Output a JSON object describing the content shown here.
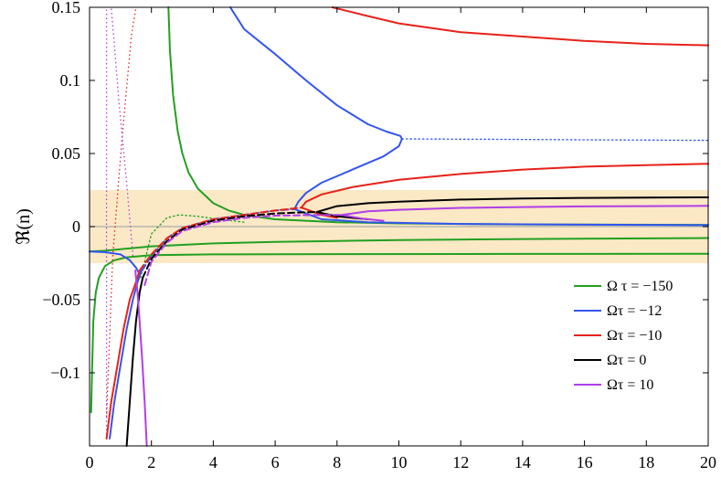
{
  "chart_data": {
    "type": "line",
    "title": "",
    "xlabel": "",
    "ylabel": "ℜ(n)",
    "xlim": [
      0,
      20
    ],
    "ylim": [
      -0.15,
      0.15
    ],
    "xticks": [
      0,
      2,
      4,
      6,
      8,
      10,
      12,
      14,
      16,
      18,
      20
    ],
    "yticks": [
      -0.1,
      -0.05,
      0,
      0.05,
      0.1,
      0.15
    ],
    "xtick_labels": [
      "0",
      "2",
      "4",
      "6",
      "8",
      "10",
      "12",
      "14",
      "16",
      "18",
      "20"
    ],
    "ytick_labels": [
      "−0.1",
      "−0.05",
      "0",
      "0.05",
      "0.1",
      "0.15"
    ],
    "grid": false,
    "legend_position": "lower-right",
    "shaded_band": {
      "y": [
        -0.025,
        0.025
      ],
      "color": "#fbe8c5"
    },
    "zero_line_color": "#aaaaaa",
    "series": [
      {
        "name": "Ω τ = −150",
        "color": "#22a022",
        "branches": [
          {
            "style": "solid",
            "x": [
              2.55,
              2.6,
              2.7,
              2.85,
              3.0,
              3.2,
              3.5,
              4.0,
              4.5,
              5.0,
              6.0,
              7.0,
              8.0,
              10.0,
              14.0,
              20.0
            ],
            "y": [
              0.15,
              0.12,
              0.09,
              0.065,
              0.05,
              0.037,
              0.026,
              0.016,
              0.011,
              0.008,
              0.005,
              0.004,
              0.003,
              0.0022,
              0.0015,
              0.0012
            ]
          },
          {
            "style": "solid",
            "x": [
              0.0,
              0.5,
              1.0,
              2.0,
              4.0,
              6.0,
              8.0,
              10.0,
              14.0,
              20.0
            ],
            "y": [
              -0.017,
              -0.0165,
              -0.0155,
              -0.0135,
              -0.0115,
              -0.0105,
              -0.0098,
              -0.0092,
              -0.0085,
              -0.0078
            ]
          },
          {
            "style": "solid",
            "x": [
              0.05,
              0.08,
              0.12,
              0.2,
              0.3,
              0.5,
              0.8,
              1.2,
              2.0,
              4.0,
              8.0,
              14.0,
              20.0
            ],
            "y": [
              -0.127,
              -0.1,
              -0.065,
              -0.045,
              -0.035,
              -0.027,
              -0.023,
              -0.021,
              -0.0195,
              -0.019,
              -0.0188,
              -0.0187,
              -0.0186
            ]
          },
          {
            "style": "dotted",
            "x": [
              1.65,
              2.0,
              2.5,
              2.9,
              3.5,
              4.2,
              5.0
            ],
            "y": [
              -0.035,
              -0.005,
              0.006,
              0.008,
              0.007,
              0.005,
              0.003
            ]
          }
        ]
      },
      {
        "name": "Ωτ = −12",
        "color": "#3355ee",
        "branches": [
          {
            "style": "solid",
            "x": [
              4.55,
              5.0,
              6.0,
              7.0,
              8.0,
              9.0,
              9.6,
              10.05,
              10.1
            ],
            "y": [
              0.15,
              0.135,
              0.118,
              0.1,
              0.083,
              0.07,
              0.065,
              0.062,
              0.06
            ]
          },
          {
            "style": "solid",
            "x": [
              10.1,
              10.0,
              9.5,
              8.5,
              7.5,
              7.0,
              6.75,
              6.62
            ],
            "y": [
              0.06,
              0.055,
              0.048,
              0.039,
              0.03,
              0.023,
              0.017,
              0.012
            ]
          },
          {
            "style": "solid",
            "x": [
              6.62,
              7.5,
              9.0,
              12.0,
              16.0,
              20.0
            ],
            "y": [
              0.012,
              0.005,
              0.003,
              0.0018,
              0.0013,
              0.001
            ]
          },
          {
            "style": "solid",
            "x": [
              0.0,
              0.5,
              1.0,
              1.3,
              1.5,
              1.6
            ],
            "y": [
              -0.017,
              -0.0175,
              -0.019,
              -0.023,
              -0.028,
              -0.032
            ]
          },
          {
            "style": "solid",
            "x": [
              0.65,
              0.8,
              1.0,
              1.2,
              1.4,
              1.55,
              1.68
            ],
            "y": [
              -0.145,
              -0.12,
              -0.095,
              -0.07,
              -0.05,
              -0.038,
              -0.03
            ]
          },
          {
            "style": "dashed",
            "x": [
              1.7,
              2.0,
              2.5,
              3.0,
              4.0,
              5.0,
              6.0,
              6.62
            ],
            "y": [
              -0.03,
              -0.02,
              -0.008,
              -0.001,
              0.005,
              0.008,
              0.011,
              0.012
            ]
          },
          {
            "style": "dotted",
            "x": [
              10.1,
              12.0,
              14.0,
              16.0,
              18.0,
              20.0
            ],
            "y": [
              0.06,
              0.0598,
              0.0596,
              0.0594,
              0.0592,
              0.059
            ]
          }
        ]
      },
      {
        "name": "Ωτ = −10",
        "color": "#e8211a",
        "branches": [
          {
            "style": "solid",
            "x": [
              7.85,
              9.0,
              10.0,
              12.0,
              14.0,
              16.0,
              18.0,
              20.0
            ],
            "y": [
              0.15,
              0.144,
              0.139,
              0.133,
              0.13,
              0.127,
              0.125,
              0.124
            ]
          },
          {
            "style": "solid",
            "x": [
              6.85,
              7.0,
              7.5,
              8.5,
              10.0,
              12.0,
              14.0,
              16.0,
              18.0,
              20.0
            ],
            "y": [
              0.013,
              0.017,
              0.022,
              0.027,
              0.032,
              0.036,
              0.039,
              0.041,
              0.042,
              0.043
            ]
          },
          {
            "style": "solid",
            "x": [
              6.85,
              7.5,
              8.0
            ],
            "y": [
              0.013,
              0.008,
              0.006
            ]
          },
          {
            "style": "solid",
            "x": [
              0.55,
              0.7,
              0.9,
              1.1,
              1.3,
              1.5,
              1.62
            ],
            "y": [
              -0.145,
              -0.12,
              -0.095,
              -0.07,
              -0.05,
              -0.038,
              -0.03
            ]
          },
          {
            "style": "dashed",
            "x": [
              1.62,
              2.0,
              2.5,
              3.0,
              4.0,
              5.0,
              6.0,
              6.85
            ],
            "y": [
              -0.03,
              -0.019,
              -0.008,
              -0.001,
              0.005,
              0.008,
              0.011,
              0.013
            ]
          }
        ]
      },
      {
        "name": "Ωτ = 0",
        "color": "#000000",
        "branches": [
          {
            "style": "solid",
            "x": [
              7.35,
              8.0,
              9.0,
              10.0,
              12.0,
              14.0,
              16.0,
              18.0,
              20.0
            ],
            "y": [
              0.01,
              0.014,
              0.016,
              0.017,
              0.0185,
              0.0192,
              0.0196,
              0.0199,
              0.02
            ]
          },
          {
            "style": "solid",
            "x": [
              7.35,
              8.0,
              9.0
            ],
            "y": [
              0.01,
              0.007,
              0.005
            ]
          },
          {
            "style": "solid",
            "x": [
              1.2,
              1.3,
              1.4,
              1.5,
              1.62,
              1.72
            ],
            "y": [
              -0.15,
              -0.12,
              -0.09,
              -0.065,
              -0.045,
              -0.035
            ]
          },
          {
            "style": "dashed",
            "x": [
              1.72,
              2.0,
              2.5,
              3.0,
              4.0,
              5.0,
              6.0,
              7.0,
              7.35
            ],
            "y": [
              -0.035,
              -0.022,
              -0.01,
              -0.002,
              0.004,
              0.007,
              0.009,
              0.0098,
              0.01
            ]
          }
        ]
      },
      {
        "name": "Ωτ = 10",
        "color": "#b03ee8",
        "branches": [
          {
            "style": "solid",
            "x": [
              8.15,
              8.5,
              9.0,
              10.0,
              12.0,
              14.0,
              16.0,
              18.0,
              20.0
            ],
            "y": [
              0.008,
              0.009,
              0.0105,
              0.0115,
              0.0128,
              0.0134,
              0.0138,
              0.014,
              0.0142
            ]
          },
          {
            "style": "solid",
            "x": [
              8.15,
              8.8,
              9.5
            ],
            "y": [
              0.008,
              0.0055,
              0.004
            ]
          },
          {
            "style": "solid",
            "x": [
              1.48,
              1.55,
              1.62,
              1.7,
              1.78,
              1.85
            ],
            "y": [
              -0.03,
              -0.045,
              -0.065,
              -0.09,
              -0.12,
              -0.15
            ]
          },
          {
            "style": "dashed",
            "x": [
              1.78,
              2.0,
              2.5,
              3.0,
              4.0,
              5.0,
              6.0,
              7.0,
              8.15
            ],
            "y": [
              -0.04,
              -0.024,
              -0.011,
              -0.003,
              0.003,
              0.006,
              0.0075,
              0.0078,
              0.008
            ]
          }
        ]
      }
    ],
    "extra_dotted": [
      {
        "color": "#b03ee8",
        "x": [
          0.55,
          0.55
        ],
        "y": [
          -0.145,
          0.15
        ]
      },
      {
        "color": "#e8211a",
        "x": [
          0.55,
          0.75,
          1.05,
          1.35,
          1.5
        ],
        "y": [
          -0.13,
          -0.02,
          0.06,
          0.13,
          0.15
        ]
      },
      {
        "color": "#b03ee8",
        "x": [
          1.4,
          1.2,
          0.95,
          0.78,
          0.7
        ],
        "y": [
          -0.02,
          0.03,
          0.085,
          0.13,
          0.15
        ]
      }
    ]
  }
}
